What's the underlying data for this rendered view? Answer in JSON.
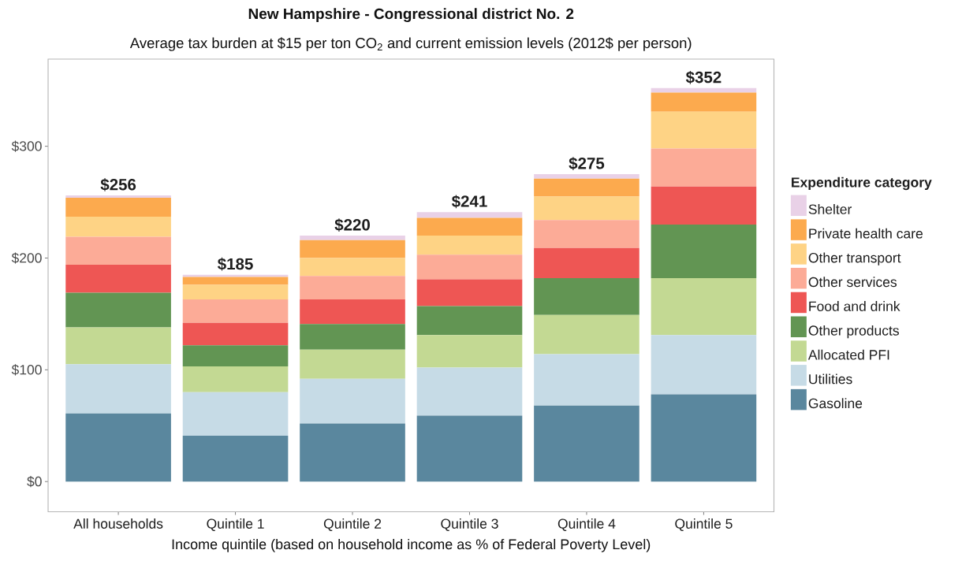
{
  "chart_data": {
    "type": "bar",
    "title": "New Hampshire - Congressional district No. 2",
    "subtitle": "Average tax burden at $15 per ton CO$_{2}$ and current emission levels (2012$ per person)",
    "xlabel": "Income quintile (based on household income as % of Federal Poverty Level)",
    "legend_title": "Expenditure category",
    "categories": [
      "All households",
      "Quintile 1",
      "Quintile 2",
      "Quintile 3",
      "Quintile 4",
      "Quintile 5"
    ],
    "stacked": true,
    "series": [
      {
        "name": "Gasoline",
        "color": "#5a879e",
        "values": [
          61,
          41,
          52,
          59,
          68,
          78
        ]
      },
      {
        "name": "Utilities",
        "color": "#c6dbe6",
        "values": [
          44,
          39,
          40,
          43,
          46,
          53
        ]
      },
      {
        "name": "Allocated PFI",
        "color": "#c3d993",
        "values": [
          33,
          23,
          26,
          29,
          35,
          51
        ]
      },
      {
        "name": "Other products",
        "color": "#629553",
        "values": [
          31,
          19,
          23,
          26,
          33,
          48
        ]
      },
      {
        "name": "Food and drink",
        "color": "#ee5654",
        "values": [
          25,
          20,
          22,
          24,
          27,
          34
        ]
      },
      {
        "name": "Other services",
        "color": "#fcab97",
        "values": [
          25,
          21,
          21,
          22,
          25,
          34
        ]
      },
      {
        "name": "Other transport",
        "color": "#fed385",
        "values": [
          18,
          13,
          16,
          17,
          21,
          33
        ]
      },
      {
        "name": "Private health care",
        "color": "#fcaa4e",
        "values": [
          17,
          7,
          16,
          16,
          16,
          17
        ]
      },
      {
        "name": "Shelter",
        "color": "#e9d1e7",
        "values": [
          2,
          2,
          4,
          5,
          4,
          4
        ]
      }
    ],
    "totals": [
      "$256",
      "$185",
      "$220",
      "$241",
      "$275",
      "$352"
    ],
    "ylim": [
      -27,
      378
    ],
    "yticks": [
      {
        "value": 0,
        "label": "$0"
      },
      {
        "value": 100,
        "label": "$100"
      },
      {
        "value": 200,
        "label": "$200"
      },
      {
        "value": 300,
        "label": "$300"
      }
    ],
    "legend": "right"
  }
}
